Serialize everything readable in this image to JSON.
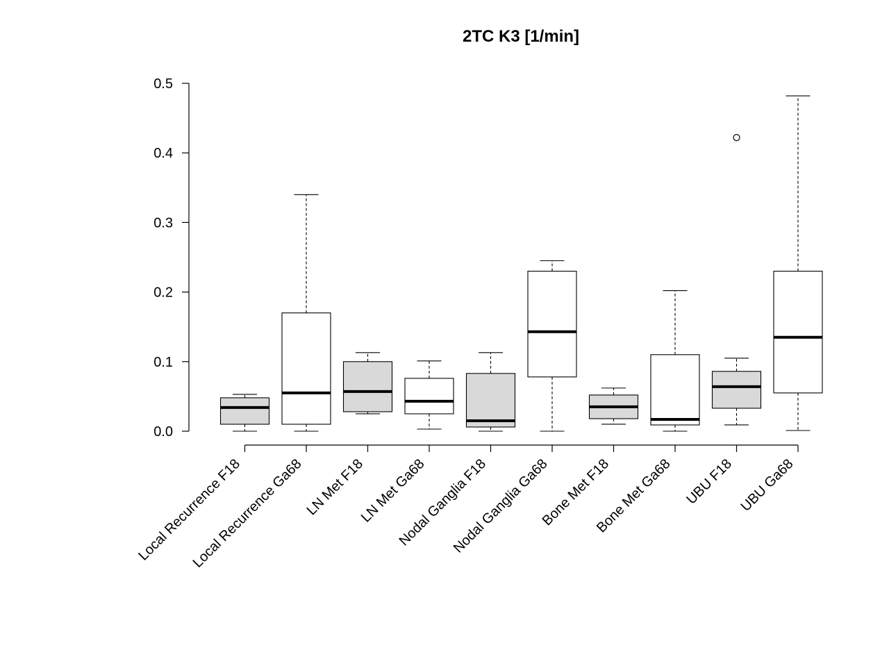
{
  "chart_data": {
    "type": "boxplot",
    "title": "2TC K3 [1/min]",
    "xlabel": "",
    "ylabel": "",
    "ylim": [
      0,
      0.5
    ],
    "yticks": [
      "0.0",
      "0.1",
      "0.2",
      "0.3",
      "0.4",
      "0.5"
    ],
    "ytick_values": [
      0,
      0.1,
      0.2,
      0.3,
      0.4,
      0.5
    ],
    "grid": false,
    "categories": [
      "Local Recurrence F18",
      "Local Recurrence Ga68",
      "LN Met F18",
      "LN Met Ga68",
      "Nodal Ganglia F18",
      "Nodal Ganglia Ga68",
      "Bone Met F18",
      "Bone Met Ga68",
      "UBU F18",
      "UBU Ga68"
    ],
    "boxes": [
      {
        "whisker_low": 0.0,
        "q1": 0.01,
        "median": 0.034,
        "q3": 0.048,
        "whisker_high": 0.053,
        "outliers": [],
        "fill": "#d9d9d9"
      },
      {
        "whisker_low": 0.0,
        "q1": 0.01,
        "median": 0.055,
        "q3": 0.17,
        "whisker_high": 0.34,
        "outliers": [],
        "fill": "#ffffff"
      },
      {
        "whisker_low": 0.025,
        "q1": 0.028,
        "median": 0.057,
        "q3": 0.1,
        "whisker_high": 0.113,
        "outliers": [],
        "fill": "#d9d9d9"
      },
      {
        "whisker_low": 0.003,
        "q1": 0.025,
        "median": 0.043,
        "q3": 0.076,
        "whisker_high": 0.101,
        "outliers": [],
        "fill": "#ffffff"
      },
      {
        "whisker_low": 0.0,
        "q1": 0.006,
        "median": 0.015,
        "q3": 0.083,
        "whisker_high": 0.113,
        "outliers": [],
        "fill": "#d9d9d9"
      },
      {
        "whisker_low": 0.0,
        "q1": 0.078,
        "median": 0.143,
        "q3": 0.23,
        "whisker_high": 0.245,
        "outliers": [],
        "fill": "#ffffff"
      },
      {
        "whisker_low": 0.01,
        "q1": 0.018,
        "median": 0.035,
        "q3": 0.052,
        "whisker_high": 0.062,
        "outliers": [],
        "fill": "#d9d9d9"
      },
      {
        "whisker_low": 0.0,
        "q1": 0.009,
        "median": 0.017,
        "q3": 0.11,
        "whisker_high": 0.202,
        "outliers": [],
        "fill": "#ffffff"
      },
      {
        "whisker_low": 0.009,
        "q1": 0.033,
        "median": 0.064,
        "q3": 0.086,
        "whisker_high": 0.105,
        "outliers": [
          0.422
        ],
        "fill": "#d9d9d9"
      },
      {
        "whisker_low": 0.001,
        "q1": 0.055,
        "median": 0.135,
        "q3": 0.23,
        "whisker_high": 0.482,
        "outliers": [],
        "fill": "#ffffff"
      }
    ]
  }
}
